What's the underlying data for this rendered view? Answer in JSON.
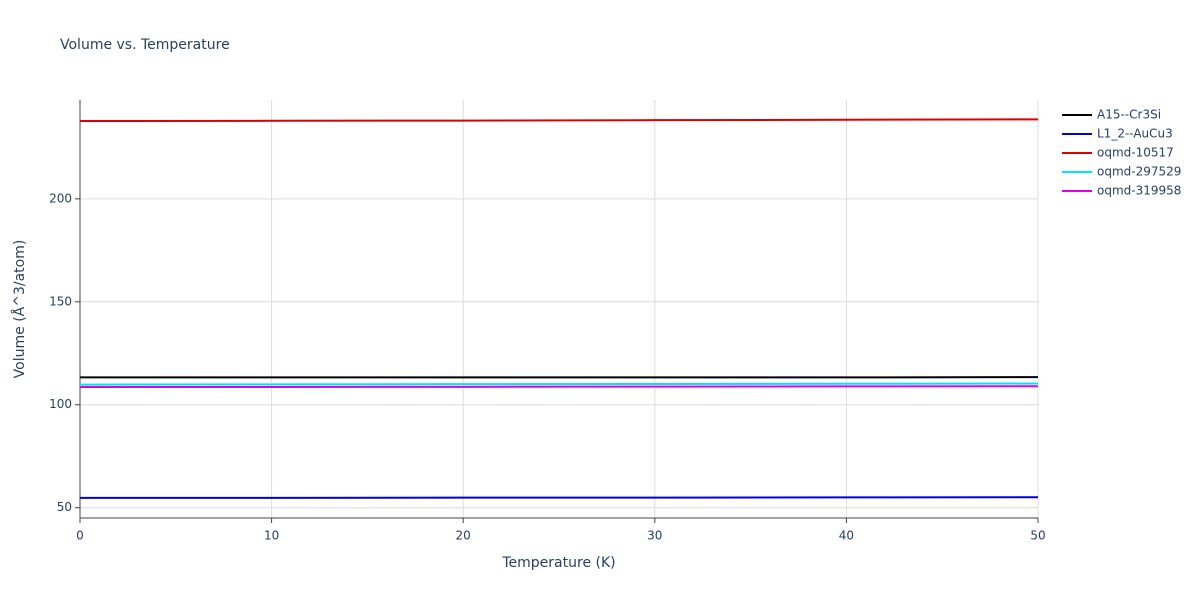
{
  "chart_data": {
    "type": "line",
    "title": "Volume vs. Temperature",
    "x_label": "Temperature (K)",
    "y_label": "Volume (Å^3/atom)",
    "x": [
      0,
      10,
      20,
      30,
      40,
      50
    ],
    "series": [
      {
        "name": "A15--Cr3Si",
        "color": "#000000",
        "values": [
          113.3,
          113.3,
          113.3,
          113.3,
          113.3,
          113.4
        ]
      },
      {
        "name": "L1_2--AuCu3",
        "color": "#0000dd",
        "values": [
          54.8,
          54.8,
          54.9,
          54.9,
          55.0,
          55.1
        ]
      },
      {
        "name": "oqmd-10517",
        "color": "#dd0000",
        "values": [
          237.8,
          237.9,
          238.0,
          238.2,
          238.4,
          238.6
        ]
      },
      {
        "name": "oqmd-297529",
        "color": "#00e5ff",
        "values": [
          109.8,
          109.9,
          110.0,
          110.1,
          110.2,
          110.3
        ]
      },
      {
        "name": "oqmd-319958",
        "color": "#e000e0",
        "values": [
          108.6,
          108.6,
          108.7,
          108.8,
          108.9,
          109.0
        ]
      }
    ],
    "xlim": [
      0,
      50
    ],
    "xticks": [
      0,
      10,
      20,
      30,
      40,
      50
    ],
    "ylim": [
      45,
      248
    ],
    "yticks": [
      50,
      100,
      150,
      200
    ],
    "grid": true,
    "legend": "right"
  }
}
